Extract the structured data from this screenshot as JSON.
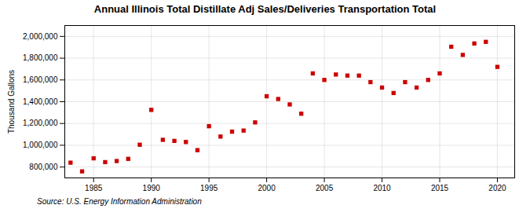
{
  "chart_data": {
    "type": "scatter",
    "title": "Annual Illinois Total Distillate Adj Sales/Deliveries Transportation Total",
    "ylabel": "Thousand Gallons",
    "annotation": "Source: U.S. Energy Information Administration",
    "x": [
      1983,
      1984,
      1985,
      1986,
      1987,
      1988,
      1989,
      1990,
      1991,
      1992,
      1993,
      1994,
      1995,
      1996,
      1997,
      1998,
      1999,
      2000,
      2001,
      2002,
      2003,
      2004,
      2005,
      2006,
      2007,
      2008,
      2009,
      2010,
      2011,
      2012,
      2013,
      2014,
      2015,
      2016,
      2017,
      2018,
      2019,
      2020
    ],
    "values": [
      840000,
      760000,
      880000,
      845000,
      855000,
      875000,
      1005000,
      1325000,
      1050000,
      1040000,
      1030000,
      955000,
      1175000,
      1080000,
      1125000,
      1135000,
      1210000,
      1450000,
      1425000,
      1375000,
      1290000,
      1660000,
      1600000,
      1650000,
      1640000,
      1640000,
      1580000,
      1530000,
      1480000,
      1580000,
      1530000,
      1600000,
      1660000,
      1905000,
      1830000,
      1935000,
      1950000,
      1720000
    ],
    "color": "#cc0000",
    "marker": "square",
    "xlim": [
      1982.5,
      2021.5
    ],
    "xticks": [
      1985,
      1990,
      1995,
      2000,
      2005,
      2010,
      2015,
      2020
    ],
    "ylim": [
      700000,
      2100000
    ],
    "yticks": [
      {
        "value": 800000,
        "label": "800,000"
      },
      {
        "value": 1000000,
        "label": "1,000,000"
      },
      {
        "value": 1200000,
        "label": "1,200,000"
      },
      {
        "value": 1400000,
        "label": "1,400,000"
      },
      {
        "value": 1600000,
        "label": "1,600,000"
      },
      {
        "value": 1800000,
        "label": "1,800,000"
      },
      {
        "value": 2000000,
        "label": "2,000,000"
      }
    ],
    "grid": true
  }
}
